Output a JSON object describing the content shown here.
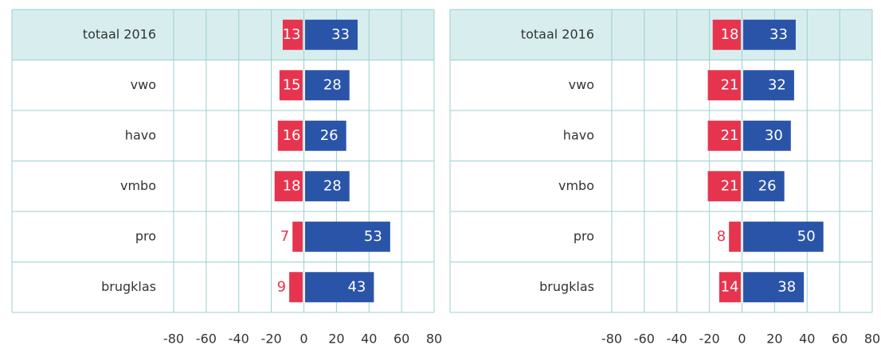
{
  "chart_data": [
    {
      "type": "bar",
      "orientation": "horizontal",
      "categories": [
        "totaal 2016",
        "vwo",
        "havo",
        "vmbo",
        "pro",
        "brugklas"
      ],
      "series": [
        {
          "color": "#e6344f",
          "values": [
            -13,
            -15,
            -16,
            -18,
            -7,
            -9
          ],
          "value_labels": [
            "13",
            "15",
            "16",
            "18",
            "7",
            "9"
          ]
        },
        {
          "color": "#2a54a8",
          "values": [
            33,
            28,
            26,
            28,
            53,
            43
          ]
        }
      ],
      "xlim": [
        -80,
        80
      ],
      "xticks": [
        -80,
        -60,
        -40,
        -20,
        0,
        20,
        40,
        60,
        80
      ],
      "grid": true
    },
    {
      "type": "bar",
      "orientation": "horizontal",
      "categories": [
        "totaal 2016",
        "vwo",
        "havo",
        "vmbo",
        "pro",
        "brugklas"
      ],
      "series": [
        {
          "color": "#e6344f",
          "values": [
            -18,
            -21,
            -21,
            -21,
            -8,
            -14
          ],
          "value_labels": [
            "18",
            "21",
            "21",
            "21",
            "8",
            "14"
          ]
        },
        {
          "color": "#2a54a8",
          "values": [
            33,
            32,
            30,
            26,
            50,
            38
          ]
        }
      ],
      "xlim": [
        -80,
        80
      ],
      "xticks": [
        -80,
        -60,
        -40,
        -20,
        0,
        20,
        40,
        60,
        80
      ],
      "grid": true
    }
  ]
}
